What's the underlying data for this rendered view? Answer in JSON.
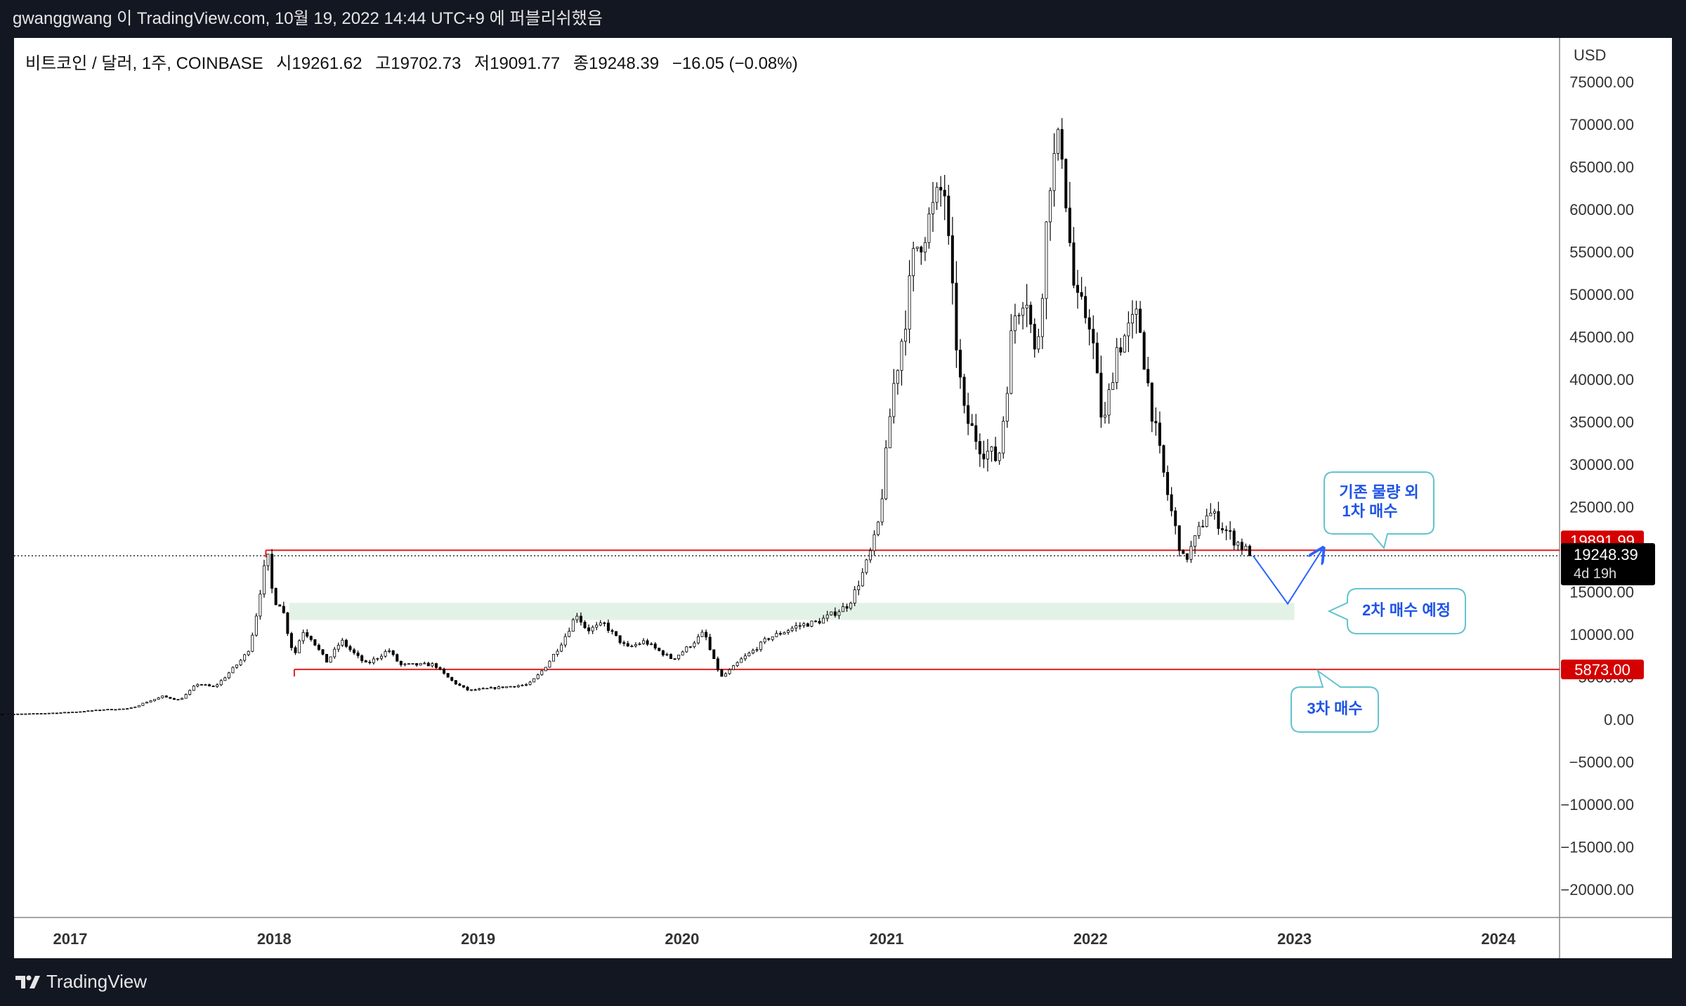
{
  "header": {
    "publish_text": "gwanggwang 이 TradingView.com, 10월 19, 2022 14:44 UTC+9 에 퍼블리쉬했음"
  },
  "legend": {
    "symbol": "비트코인 / 달러, 1주, COINBASE",
    "open_label": "시",
    "open": "19261.62",
    "high_label": "고",
    "high": "19702.73",
    "low_label": "저",
    "low": "19091.77",
    "close_label": "종",
    "close": "19248.39",
    "change": "−16.05 (−0.08%)"
  },
  "price_axis": {
    "currency": "USD",
    "ticks": [
      "75000.00",
      "70000.00",
      "65000.00",
      "60000.00",
      "55000.00",
      "50000.00",
      "45000.00",
      "40000.00",
      "35000.00",
      "30000.00",
      "25000.00",
      "20000.00",
      "15000.00",
      "10000.00",
      "5000.00",
      "0.00",
      "−5000.00",
      "−10000.00",
      "−15000.00",
      "−20000.00"
    ],
    "last_price": "19248.39",
    "countdown": "4d 19h",
    "resistance_label": "19891.99",
    "support_label": "5873.00"
  },
  "time_axis": {
    "ticks": [
      "2017",
      "2018",
      "2019",
      "2020",
      "2021",
      "2022",
      "2023",
      "2024"
    ]
  },
  "annotations": {
    "first_buy": {
      "line1": "기존 물량 외",
      "line2": "1차 매수"
    },
    "second_buy": "2차 매수 예정",
    "third_buy": "3차 매수"
  },
  "colors": {
    "candle": "#000000",
    "resistance_line": "#e02020",
    "price_tag": "#d50000",
    "zone_fill": "#e3f2e6",
    "projection": "#2962ff",
    "callout_border": "#62c3d0",
    "callout_text": "#1e53e5"
  },
  "chart_data": {
    "type": "candlestick",
    "symbol": "BTC/USD",
    "interval": "1W",
    "exchange": "COINBASE",
    "ylim": [
      -23000,
      78000
    ],
    "x_range": [
      "2016-09",
      "2024-07"
    ],
    "y_ticks": [
      -20000,
      -15000,
      -10000,
      -5000,
      0,
      5000,
      10000,
      15000,
      20000,
      25000,
      30000,
      35000,
      40000,
      45000,
      50000,
      55000,
      60000,
      65000,
      70000,
      75000
    ],
    "x_ticks": [
      "2017",
      "2018",
      "2019",
      "2020",
      "2021",
      "2022",
      "2023",
      "2024"
    ],
    "price_path": [
      [
        "2016-09-01",
        600
      ],
      [
        "2016-10-15",
        650
      ],
      [
        "2016-12-01",
        750
      ],
      [
        "2017-01-15",
        900
      ],
      [
        "2017-03-01",
        1150
      ],
      [
        "2017-04-15",
        1250
      ],
      [
        "2017-05-15",
        2000
      ],
      [
        "2017-06-15",
        2700
      ],
      [
        "2017-07-15",
        2300
      ],
      [
        "2017-08-15",
        4200
      ],
      [
        "2017-09-15",
        3800
      ],
      [
        "2017-10-15",
        5700
      ],
      [
        "2017-11-15",
        8000
      ],
      [
        "2017-12-10",
        16500
      ],
      [
        "2017-12-20",
        19500
      ],
      [
        "2017-12-31",
        14000
      ],
      [
        "2018-01-15",
        13500
      ],
      [
        "2018-02-06",
        7500
      ],
      [
        "2018-02-20",
        10500
      ],
      [
        "2018-03-10",
        9500
      ],
      [
        "2018-04-05",
        6800
      ],
      [
        "2018-05-01",
        9300
      ],
      [
        "2018-06-15",
        6500
      ],
      [
        "2018-07-25",
        8200
      ],
      [
        "2018-08-15",
        6400
      ],
      [
        "2018-10-15",
        6450
      ],
      [
        "2018-11-20",
        4300
      ],
      [
        "2018-12-15",
        3400
      ],
      [
        "2019-01-15",
        3600
      ],
      [
        "2019-02-15",
        3800
      ],
      [
        "2019-04-01",
        4100
      ],
      [
        "2019-05-15",
        7500
      ],
      [
        "2019-06-26",
        12500
      ],
      [
        "2019-07-15",
        10500
      ],
      [
        "2019-08-15",
        11200
      ],
      [
        "2019-09-25",
        8400
      ],
      [
        "2019-10-26",
        9200
      ],
      [
        "2019-12-15",
        7100
      ],
      [
        "2020-02-10",
        10300
      ],
      [
        "2020-03-12",
        5000
      ],
      [
        "2020-04-15",
        7000
      ],
      [
        "2020-06-01",
        9500
      ],
      [
        "2020-07-25",
        11000
      ],
      [
        "2020-09-01",
        11500
      ],
      [
        "2020-10-25",
        13500
      ],
      [
        "2020-12-15",
        22000
      ],
      [
        "2021-01-10",
        38000
      ],
      [
        "2021-02-20",
        55000
      ],
      [
        "2021-04-14",
        63000
      ],
      [
        "2021-05-19",
        36000
      ],
      [
        "2021-06-20",
        32000
      ],
      [
        "2021-07-20",
        30500
      ],
      [
        "2021-08-15",
        47000
      ],
      [
        "2021-09-07",
        51000
      ],
      [
        "2021-09-25",
        42000
      ],
      [
        "2021-10-20",
        64000
      ],
      [
        "2021-11-10",
        68500
      ],
      [
        "2021-12-05",
        49000
      ],
      [
        "2022-01-01",
        47000
      ],
      [
        "2022-01-24",
        34000
      ],
      [
        "2022-02-15",
        43500
      ],
      [
        "2022-03-28",
        47500
      ],
      [
        "2022-05-10",
        29500
      ],
      [
        "2022-06-18",
        18500
      ],
      [
        "2022-07-29",
        24500
      ],
      [
        "2022-08-15",
        23500
      ],
      [
        "2022-09-10",
        21500
      ],
      [
        "2022-10-19",
        19248
      ]
    ],
    "last_candle": {
      "open": 19261.62,
      "high": 19702.73,
      "low": 19091.77,
      "close": 19248.39,
      "change": -16.05,
      "change_pct": -0.08
    },
    "horizontal_levels": [
      {
        "price": 19891.99,
        "from": "2017-12-17",
        "to": "2024-07",
        "color": "#e02020"
      },
      {
        "price": 5873.0,
        "from": "2018-02-06",
        "to": "2024-07",
        "color": "#e02020"
      }
    ],
    "zones": [
      {
        "from": "2018-01-28",
        "to": "2023-01",
        "low": 11700,
        "high": 13700
      }
    ],
    "projection": [
      [
        "2022-10-19",
        19248
      ],
      [
        "2022-12-20",
        13600
      ],
      [
        "2023-02-20",
        20000
      ]
    ]
  }
}
